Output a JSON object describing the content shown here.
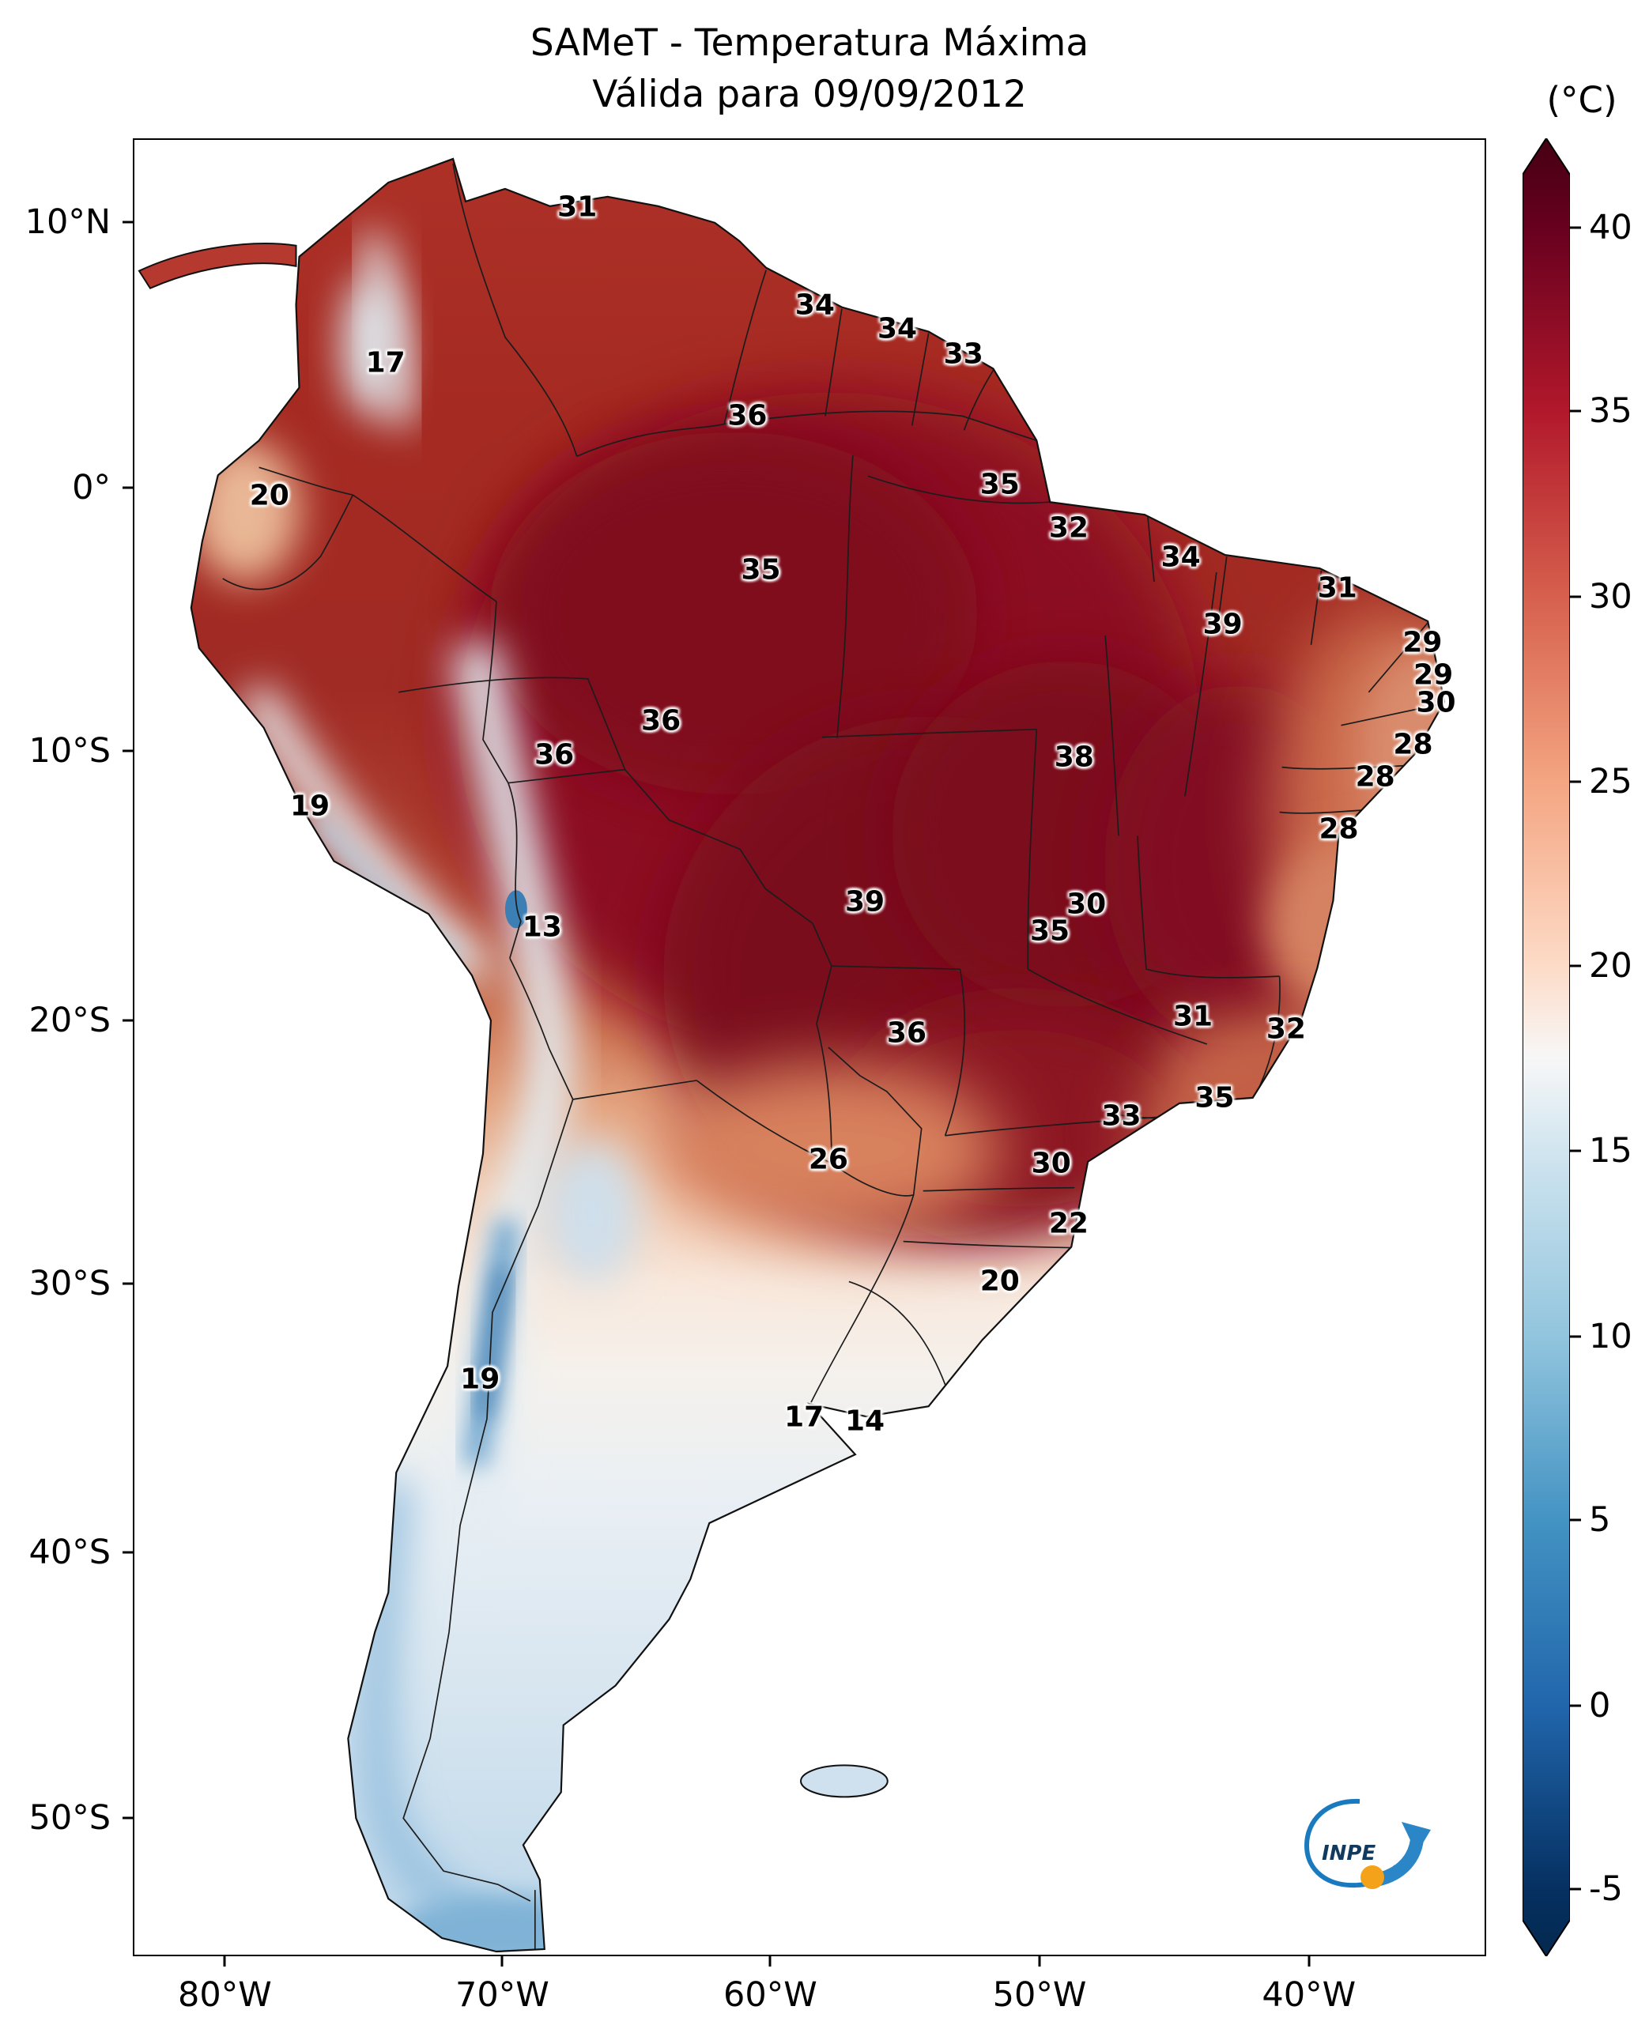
{
  "title": {
    "line1": "SAMeT - Temperatura Máxima",
    "line2": "Válida para 09/09/2012"
  },
  "colorbar": {
    "unit": "(°C)",
    "ticks": [
      {
        "value": 40,
        "pct": 4.9
      },
      {
        "value": 35,
        "pct": 15.0
      },
      {
        "value": 30,
        "pct": 25.2
      },
      {
        "value": 25,
        "pct": 35.4
      },
      {
        "value": 20,
        "pct": 45.5
      },
      {
        "value": 15,
        "pct": 55.7
      },
      {
        "value": 10,
        "pct": 65.9
      },
      {
        "value": 5,
        "pct": 76.0
      },
      {
        "value": 0,
        "pct": 86.2
      },
      {
        "value": -5,
        "pct": 96.3
      }
    ],
    "gradient": [
      {
        "pct": 0,
        "color": "#450013"
      },
      {
        "pct": 4.9,
        "color": "#67001f"
      },
      {
        "pct": 15.0,
        "color": "#b2182b"
      },
      {
        "pct": 25.2,
        "color": "#d6604d"
      },
      {
        "pct": 35.4,
        "color": "#f4a582"
      },
      {
        "pct": 45.5,
        "color": "#fddbc7"
      },
      {
        "pct": 50.6,
        "color": "#f7f7f7"
      },
      {
        "pct": 55.7,
        "color": "#d1e5f0"
      },
      {
        "pct": 65.9,
        "color": "#92c5de"
      },
      {
        "pct": 76.0,
        "color": "#4393c3"
      },
      {
        "pct": 86.2,
        "color": "#2166ac"
      },
      {
        "pct": 96.3,
        "color": "#053061"
      },
      {
        "pct": 100,
        "color": "#04294f"
      }
    ]
  },
  "axes": {
    "lat_ticks": [
      {
        "label": "10°N",
        "pct": 4.6
      },
      {
        "label": "0°",
        "pct": 19.2
      },
      {
        "label": "10°S",
        "pct": 33.7
      },
      {
        "label": "20°S",
        "pct": 48.5
      },
      {
        "label": "30°S",
        "pct": 63.0
      },
      {
        "label": "40°S",
        "pct": 77.8
      },
      {
        "label": "50°S",
        "pct": 92.4
      }
    ],
    "lon_ticks": [
      {
        "label": "80°W",
        "pct": 6.8
      },
      {
        "label": "70°W",
        "pct": 27.3
      },
      {
        "label": "60°W",
        "pct": 47.1
      },
      {
        "label": "50°W",
        "pct": 67.0
      },
      {
        "label": "40°W",
        "pct": 86.9
      }
    ]
  },
  "logo": {
    "text": "INPE"
  },
  "chart_data": {
    "type": "heatmap",
    "title": "SAMeT - Temperatura Máxima",
    "subtitle": "Válida para 09/09/2012",
    "unit": "°C",
    "colorbar_range": [
      -5,
      40
    ],
    "colorbar_ticks": [
      40,
      35,
      30,
      25,
      20,
      15,
      10,
      5,
      0,
      -5
    ],
    "lat_axis": [
      "10°N",
      "0°",
      "10°S",
      "20°S",
      "30°S",
      "40°S",
      "50°S"
    ],
    "lon_axis": [
      "80°W",
      "70°W",
      "60°W",
      "50°W",
      "40°W"
    ],
    "stations": [
      {
        "value": 31,
        "x_pct": 32.8,
        "y_pct": 3.7
      },
      {
        "value": 34,
        "x_pct": 50.4,
        "y_pct": 9.1
      },
      {
        "value": 34,
        "x_pct": 56.5,
        "y_pct": 10.4
      },
      {
        "value": 33,
        "x_pct": 61.4,
        "y_pct": 11.8
      },
      {
        "value": 17,
        "x_pct": 18.6,
        "y_pct": 12.3
      },
      {
        "value": 36,
        "x_pct": 45.4,
        "y_pct": 15.2
      },
      {
        "value": 20,
        "x_pct": 10.0,
        "y_pct": 19.6
      },
      {
        "value": 35,
        "x_pct": 64.1,
        "y_pct": 19.0
      },
      {
        "value": 32,
        "x_pct": 69.2,
        "y_pct": 21.4
      },
      {
        "value": 35,
        "x_pct": 46.4,
        "y_pct": 23.7
      },
      {
        "value": 34,
        "x_pct": 77.5,
        "y_pct": 23.0
      },
      {
        "value": 31,
        "x_pct": 89.1,
        "y_pct": 24.7
      },
      {
        "value": 39,
        "x_pct": 80.6,
        "y_pct": 26.7
      },
      {
        "value": 29,
        "x_pct": 95.4,
        "y_pct": 27.7
      },
      {
        "value": 29,
        "x_pct": 96.2,
        "y_pct": 29.5
      },
      {
        "value": 30,
        "x_pct": 96.4,
        "y_pct": 31.0
      },
      {
        "value": 28,
        "x_pct": 94.7,
        "y_pct": 33.3
      },
      {
        "value": 36,
        "x_pct": 39.0,
        "y_pct": 32.0
      },
      {
        "value": 36,
        "x_pct": 31.1,
        "y_pct": 33.9
      },
      {
        "value": 38,
        "x_pct": 69.6,
        "y_pct": 34.0
      },
      {
        "value": 28,
        "x_pct": 91.9,
        "y_pct": 35.1
      },
      {
        "value": 19,
        "x_pct": 13.0,
        "y_pct": 36.7
      },
      {
        "value": 28,
        "x_pct": 89.2,
        "y_pct": 38.0
      },
      {
        "value": 39,
        "x_pct": 54.1,
        "y_pct": 42.0
      },
      {
        "value": 30,
        "x_pct": 70.5,
        "y_pct": 42.1
      },
      {
        "value": 35,
        "x_pct": 67.8,
        "y_pct": 43.6
      },
      {
        "value": 13,
        "x_pct": 30.2,
        "y_pct": 43.4
      },
      {
        "value": 36,
        "x_pct": 57.2,
        "y_pct": 49.2
      },
      {
        "value": 31,
        "x_pct": 78.4,
        "y_pct": 48.3
      },
      {
        "value": 32,
        "x_pct": 85.3,
        "y_pct": 49.0
      },
      {
        "value": 33,
        "x_pct": 73.1,
        "y_pct": 53.8
      },
      {
        "value": 35,
        "x_pct": 80.0,
        "y_pct": 52.8
      },
      {
        "value": 26,
        "x_pct": 51.4,
        "y_pct": 56.2
      },
      {
        "value": 30,
        "x_pct": 67.9,
        "y_pct": 56.4
      },
      {
        "value": 22,
        "x_pct": 69.2,
        "y_pct": 59.7
      },
      {
        "value": 20,
        "x_pct": 64.1,
        "y_pct": 62.9
      },
      {
        "value": 19,
        "x_pct": 25.6,
        "y_pct": 68.3
      },
      {
        "value": 17,
        "x_pct": 49.6,
        "y_pct": 70.4
      },
      {
        "value": 14,
        "x_pct": 54.1,
        "y_pct": 70.6
      }
    ]
  }
}
